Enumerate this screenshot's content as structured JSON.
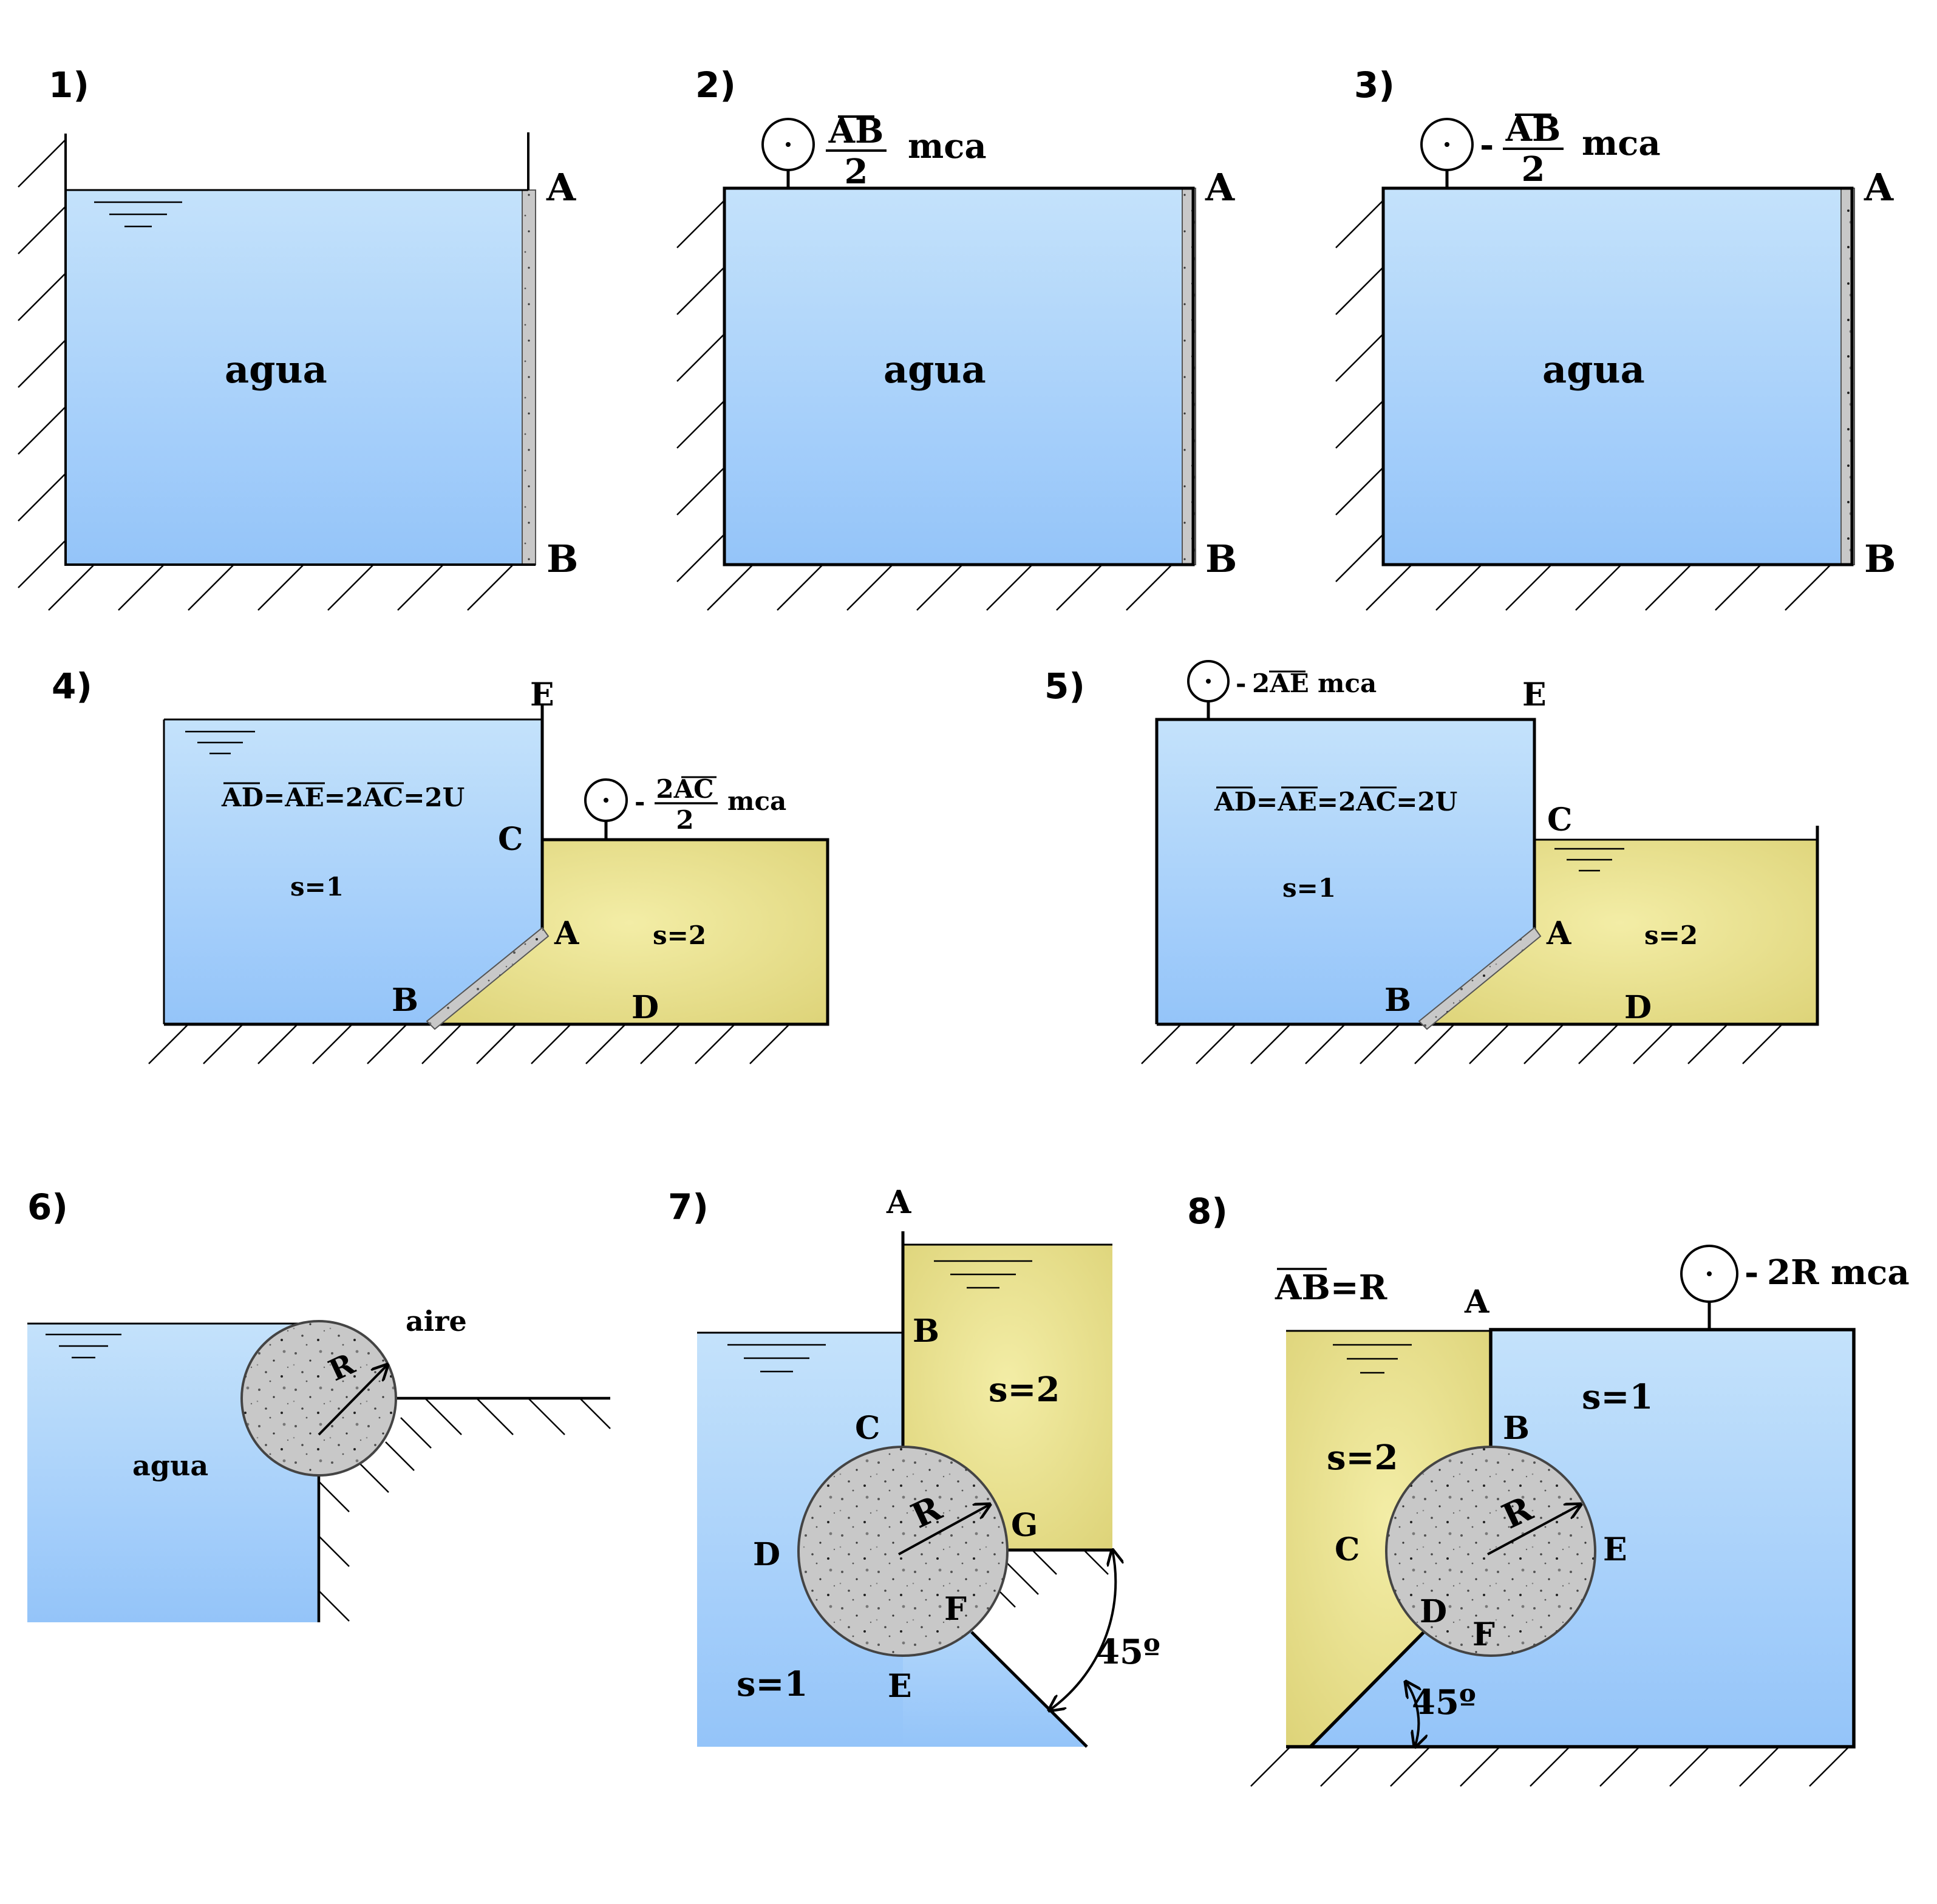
{
  "colors": {
    "water_top": "#c4e2fb",
    "water_bottom": "#94c4f9",
    "oil_center": "#f1ea9e",
    "oil_edge": "#dfd57a",
    "concrete": "#c7c7c7",
    "line": "#000000"
  },
  "problems": [
    {
      "number": "1)",
      "fluid": "agua",
      "points": {
        "A": "A",
        "B": "B"
      }
    },
    {
      "number": "2)",
      "gauge_icon": "pressure-gauge-icon",
      "gauge": {
        "sign": "",
        "numerator": "AB",
        "denominator": "2",
        "unit": "mca"
      },
      "fluid": "agua",
      "points": {
        "A": "A",
        "B": "B"
      }
    },
    {
      "number": "3)",
      "gauge_icon": "pressure-gauge-icon",
      "gauge": {
        "sign": "-",
        "numerator": "AB",
        "denominator": "2",
        "unit": "mca"
      },
      "fluid": "agua",
      "points": {
        "A": "A",
        "B": "B"
      }
    },
    {
      "number": "4)",
      "relation": "AD=AE=2AC=2U",
      "left_fluid": "s=1",
      "right_fluid": "s=2",
      "gauge_icon": "pressure-gauge-icon",
      "gauge": {
        "sign": "-",
        "numerator": "2AC",
        "denominator": "2",
        "unit": "mca"
      },
      "points": {
        "A": "A",
        "B": "B",
        "C": "C",
        "D": "D",
        "E": "E"
      }
    },
    {
      "number": "5)",
      "relation": "AD=AE=2AC=2U",
      "left_fluid": "s=1",
      "right_fluid": "s=2",
      "gauge_icon": "pressure-gauge-icon",
      "gauge": {
        "sign": "-",
        "value": "2AE",
        "unit": "mca"
      },
      "points": {
        "A": "A",
        "B": "B",
        "C": "C",
        "D": "D",
        "E": "E"
      }
    },
    {
      "number": "6)",
      "fluid": "agua",
      "gas": "aire",
      "radius": "R"
    },
    {
      "number": "7)",
      "left_fluid": "s=1",
      "right_fluid": "s=2",
      "radius": "R",
      "angle": "45º",
      "points": {
        "A": "A",
        "B": "B",
        "C": "C",
        "D": "D",
        "E": "E",
        "F": "F",
        "G": "G"
      }
    },
    {
      "number": "8)",
      "relation": "AB=R",
      "left_fluid": "s=2",
      "right_fluid": "s=1",
      "radius": "R",
      "angle": "45º",
      "gauge_icon": "pressure-gauge-icon",
      "gauge": {
        "sign": "-",
        "value": "2R",
        "unit": "mca"
      },
      "points": {
        "A": "A",
        "B": "B",
        "C": "C",
        "D": "D",
        "E": "E",
        "F": "F"
      }
    }
  ]
}
